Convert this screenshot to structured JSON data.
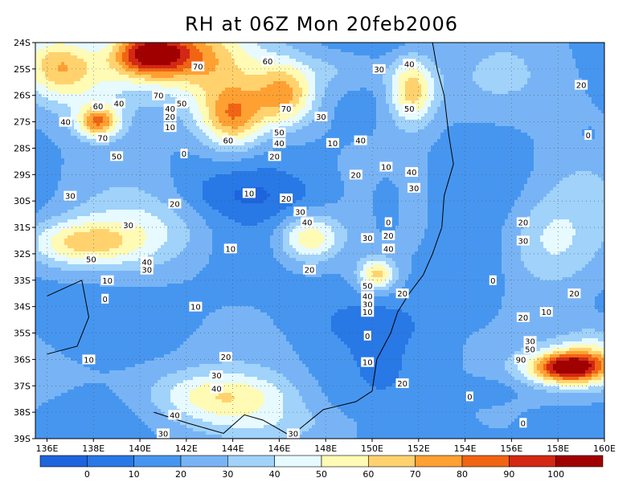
{
  "chart_data": {
    "type": "heatmap",
    "title": "RH at 06Z Mon 20feb2006",
    "x_ticks": [
      "136E",
      "138E",
      "140E",
      "142E",
      "144E",
      "146E",
      "148E",
      "150E",
      "152E",
      "154E",
      "156E",
      "158E",
      "160E"
    ],
    "y_ticks": [
      "24S",
      "25S",
      "26S",
      "27S",
      "28S",
      "29S",
      "30S",
      "31S",
      "32S",
      "33S",
      "34S",
      "35S",
      "36S",
      "37S",
      "38S",
      "39S"
    ],
    "xlim": [
      135.5,
      160
    ],
    "ylim": [
      -39,
      -24
    ],
    "grid": true,
    "colorbar": {
      "colors": [
        "#1e64dc",
        "#2878e6",
        "#4696f0",
        "#78b4f5",
        "#a0d2fa",
        "#e6faff",
        "#fffab4",
        "#ffd26e",
        "#ffa032",
        "#f06414",
        "#d22814",
        "#a00000"
      ],
      "labels": [
        "0",
        "10",
        "20",
        "30",
        "40",
        "50",
        "60",
        "70",
        "80",
        "90",
        "100"
      ]
    },
    "contour_labels": [
      {
        "lon": 136.8,
        "lat": -27,
        "v": "40"
      },
      {
        "lon": 138.2,
        "lat": -26.4,
        "v": "60"
      },
      {
        "lon": 139.1,
        "lat": -26.3,
        "v": "40"
      },
      {
        "lon": 138.4,
        "lat": -27.6,
        "v": "70"
      },
      {
        "lon": 139,
        "lat": -28.3,
        "v": "50"
      },
      {
        "lon": 140.8,
        "lat": -26,
        "v": "70"
      },
      {
        "lon": 141.3,
        "lat": -26.5,
        "v": "40"
      },
      {
        "lon": 141.8,
        "lat": -26.3,
        "v": "50"
      },
      {
        "lon": 141.3,
        "lat": -26.8,
        "v": "20"
      },
      {
        "lon": 141.3,
        "lat": -27.2,
        "v": "10"
      },
      {
        "lon": 142.5,
        "lat": -24.9,
        "v": "70"
      },
      {
        "lon": 143.8,
        "lat": -27.7,
        "v": "60"
      },
      {
        "lon": 145.5,
        "lat": -24.7,
        "v": "60"
      },
      {
        "lon": 146.3,
        "lat": -26.5,
        "v": "70"
      },
      {
        "lon": 146,
        "lat": -27.4,
        "v": "50"
      },
      {
        "lon": 146,
        "lat": -27.8,
        "v": "40"
      },
      {
        "lon": 145.8,
        "lat": -28.3,
        "v": "20"
      },
      {
        "lon": 147.8,
        "lat": -26.8,
        "v": "30"
      },
      {
        "lon": 148.3,
        "lat": -27.8,
        "v": "10"
      },
      {
        "lon": 149.5,
        "lat": -27.7,
        "v": "40"
      },
      {
        "lon": 150.3,
        "lat": -25,
        "v": "30"
      },
      {
        "lon": 151.6,
        "lat": -24.8,
        "v": "40"
      },
      {
        "lon": 151.6,
        "lat": -26.5,
        "v": "50"
      },
      {
        "lon": 159,
        "lat": -25.6,
        "v": "20"
      },
      {
        "lon": 159.3,
        "lat": -27.5,
        "v": "0"
      },
      {
        "lon": 141.9,
        "lat": -28.2,
        "v": "0"
      },
      {
        "lon": 149.3,
        "lat": -29,
        "v": "20"
      },
      {
        "lon": 150.6,
        "lat": -28.7,
        "v": "10"
      },
      {
        "lon": 151.7,
        "lat": -28.9,
        "v": "40"
      },
      {
        "lon": 151.8,
        "lat": -29.5,
        "v": "30"
      },
      {
        "lon": 137,
        "lat": -29.8,
        "v": "30"
      },
      {
        "lon": 144.7,
        "lat": -29.7,
        "v": "10"
      },
      {
        "lon": 146.3,
        "lat": -29.9,
        "v": "20"
      },
      {
        "lon": 141.5,
        "lat": -30.1,
        "v": "20"
      },
      {
        "lon": 146.9,
        "lat": -30.4,
        "v": "30"
      },
      {
        "lon": 147.2,
        "lat": -30.8,
        "v": "40"
      },
      {
        "lon": 139.5,
        "lat": -30.9,
        "v": "30"
      },
      {
        "lon": 150.7,
        "lat": -30.8,
        "v": "0"
      },
      {
        "lon": 149.8,
        "lat": -31.4,
        "v": "30"
      },
      {
        "lon": 150.7,
        "lat": -31.3,
        "v": "20"
      },
      {
        "lon": 150.7,
        "lat": -31.8,
        "v": "40"
      },
      {
        "lon": 156.5,
        "lat": -30.8,
        "v": "20"
      },
      {
        "lon": 156.5,
        "lat": -31.5,
        "v": "30"
      },
      {
        "lon": 137.9,
        "lat": -32.2,
        "v": "50"
      },
      {
        "lon": 143.9,
        "lat": -31.8,
        "v": "10"
      },
      {
        "lon": 140.3,
        "lat": -32.3,
        "v": "40"
      },
      {
        "lon": 140.3,
        "lat": -32.6,
        "v": "30"
      },
      {
        "lon": 147.3,
        "lat": -32.6,
        "v": "20"
      },
      {
        "lon": 138.6,
        "lat": -33,
        "v": "10"
      },
      {
        "lon": 149.8,
        "lat": -33.2,
        "v": "50"
      },
      {
        "lon": 155.2,
        "lat": -33,
        "v": "0"
      },
      {
        "lon": 149.8,
        "lat": -33.6,
        "v": "40"
      },
      {
        "lon": 149.8,
        "lat": -33.9,
        "v": "30"
      },
      {
        "lon": 149.8,
        "lat": -34.2,
        "v": "10"
      },
      {
        "lon": 151.3,
        "lat": -33.5,
        "v": "20"
      },
      {
        "lon": 158.7,
        "lat": -33.5,
        "v": "20"
      },
      {
        "lon": 138.5,
        "lat": -33.7,
        "v": "0"
      },
      {
        "lon": 142.4,
        "lat": -34,
        "v": "10"
      },
      {
        "lon": 157.5,
        "lat": -34.2,
        "v": "10"
      },
      {
        "lon": 156.5,
        "lat": -34.4,
        "v": "20"
      },
      {
        "lon": 149.8,
        "lat": -35.1,
        "v": "0"
      },
      {
        "lon": 156.8,
        "lat": -35.3,
        "v": "30"
      },
      {
        "lon": 156.8,
        "lat": -35.6,
        "v": "50"
      },
      {
        "lon": 156.4,
        "lat": -36,
        "v": "90"
      },
      {
        "lon": 137.8,
        "lat": -36,
        "v": "10"
      },
      {
        "lon": 143.7,
        "lat": -35.9,
        "v": "20"
      },
      {
        "lon": 149.8,
        "lat": -36.1,
        "v": "10"
      },
      {
        "lon": 143.3,
        "lat": -36.6,
        "v": "30"
      },
      {
        "lon": 143.3,
        "lat": -37.1,
        "v": "40"
      },
      {
        "lon": 151.3,
        "lat": -36.9,
        "v": "20"
      },
      {
        "lon": 154.2,
        "lat": -37.4,
        "v": "0"
      },
      {
        "lon": 141.5,
        "lat": -38.1,
        "v": "40"
      },
      {
        "lon": 156.5,
        "lat": -38.4,
        "v": "0"
      },
      {
        "lon": 141,
        "lat": -38.8,
        "v": "30"
      },
      {
        "lon": 146.6,
        "lat": -38.8,
        "v": "30"
      }
    ]
  }
}
